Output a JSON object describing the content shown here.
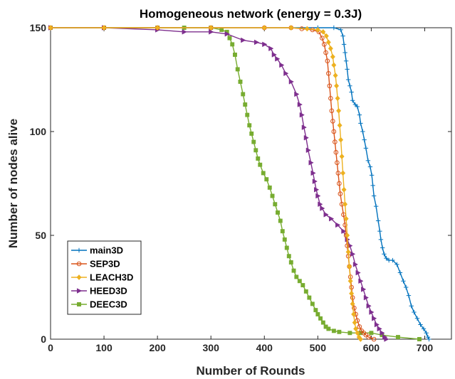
{
  "chart_data": {
    "type": "line",
    "title": "Homogeneous network (energy = 0.3J)",
    "xlabel": "Number of Rounds",
    "ylabel": "Number of nodes alive",
    "xlim": [
      0,
      750
    ],
    "ylim": [
      0,
      150
    ],
    "xticks": [
      "0",
      "100",
      "200",
      "300",
      "400",
      "500",
      "600",
      "700"
    ],
    "yticks": [
      "0",
      "50",
      "100",
      "150"
    ],
    "grid": false,
    "legend_position": "bottom-left",
    "series": [
      {
        "name": "main3D",
        "color": "#0072BD",
        "marker": "plus",
        "points": [
          [
            0,
            150
          ],
          [
            100,
            150
          ],
          [
            200,
            150
          ],
          [
            300,
            150
          ],
          [
            400,
            150
          ],
          [
            450,
            150
          ],
          [
            500,
            150
          ],
          [
            530,
            150
          ],
          [
            543,
            149
          ],
          [
            547,
            146
          ],
          [
            549,
            142
          ],
          [
            551,
            138
          ],
          [
            553,
            134
          ],
          [
            555,
            130
          ],
          [
            557,
            125
          ],
          [
            560,
            122
          ],
          [
            563,
            119
          ],
          [
            565,
            115
          ],
          [
            570,
            113
          ],
          [
            574,
            112
          ],
          [
            578,
            108
          ],
          [
            580,
            104
          ],
          [
            584,
            100
          ],
          [
            587,
            96
          ],
          [
            590,
            92
          ],
          [
            594,
            86
          ],
          [
            598,
            83
          ],
          [
            601,
            79
          ],
          [
            603,
            74
          ],
          [
            605,
            69
          ],
          [
            609,
            64
          ],
          [
            613,
            57
          ],
          [
            616,
            52
          ],
          [
            618,
            48
          ],
          [
            621,
            44
          ],
          [
            624,
            41
          ],
          [
            628,
            39
          ],
          [
            633,
            38
          ],
          [
            640,
            38
          ],
          [
            648,
            36
          ],
          [
            654,
            32
          ],
          [
            660,
            28
          ],
          [
            665,
            25
          ],
          [
            670,
            21
          ],
          [
            675,
            16
          ],
          [
            680,
            13
          ],
          [
            686,
            10
          ],
          [
            692,
            7
          ],
          [
            698,
            5
          ],
          [
            703,
            3
          ],
          [
            706,
            1
          ],
          [
            708,
            0
          ]
        ]
      },
      {
        "name": "SEP3D",
        "color": "#D95319",
        "marker": "circle",
        "points": [
          [
            0,
            150
          ],
          [
            100,
            150
          ],
          [
            200,
            150
          ],
          [
            300,
            150
          ],
          [
            400,
            150
          ],
          [
            450,
            150
          ],
          [
            470,
            149.5
          ],
          [
            490,
            149
          ],
          [
            502,
            148
          ],
          [
            508,
            145
          ],
          [
            512,
            142
          ],
          [
            515,
            138
          ],
          [
            518,
            134
          ],
          [
            520,
            128
          ],
          [
            522,
            122
          ],
          [
            524,
            116
          ],
          [
            526,
            110
          ],
          [
            528,
            105
          ],
          [
            530,
            100
          ],
          [
            532,
            95
          ],
          [
            534,
            90
          ],
          [
            536,
            85
          ],
          [
            538,
            80
          ],
          [
            540,
            75
          ],
          [
            542,
            70
          ],
          [
            545,
            65
          ],
          [
            548,
            60
          ],
          [
            551,
            55
          ],
          [
            553,
            50
          ],
          [
            555,
            45
          ],
          [
            557,
            40
          ],
          [
            559,
            35
          ],
          [
            561,
            30
          ],
          [
            563,
            25
          ],
          [
            565,
            20
          ],
          [
            568,
            15
          ],
          [
            571,
            12
          ],
          [
            574,
            9
          ],
          [
            578,
            6
          ],
          [
            582,
            4
          ],
          [
            586,
            3
          ],
          [
            590,
            2
          ],
          [
            595,
            1
          ],
          [
            605,
            0
          ]
        ]
      },
      {
        "name": "LEACH3D",
        "color": "#EDB120",
        "marker": "diamond",
        "points": [
          [
            0,
            150
          ],
          [
            100,
            150
          ],
          [
            200,
            150
          ],
          [
            300,
            150
          ],
          [
            400,
            150
          ],
          [
            450,
            150
          ],
          [
            480,
            149.5
          ],
          [
            500,
            149
          ],
          [
            510,
            148
          ],
          [
            516,
            146
          ],
          [
            520,
            143
          ],
          [
            524,
            140
          ],
          [
            528,
            136
          ],
          [
            530,
            132
          ],
          [
            533,
            127
          ],
          [
            535,
            122
          ],
          [
            537,
            116
          ],
          [
            539,
            110
          ],
          [
            541,
            103
          ],
          [
            543,
            96
          ],
          [
            545,
            88
          ],
          [
            547,
            80
          ],
          [
            549,
            72
          ],
          [
            551,
            65
          ],
          [
            553,
            58
          ],
          [
            555,
            50
          ],
          [
            557,
            42
          ],
          [
            559,
            35
          ],
          [
            561,
            28
          ],
          [
            563,
            22
          ],
          [
            565,
            17
          ],
          [
            567,
            12
          ],
          [
            569,
            8
          ],
          [
            571,
            5
          ],
          [
            574,
            3
          ],
          [
            577,
            1
          ],
          [
            580,
            0
          ]
        ]
      },
      {
        "name": "HEED3D",
        "color": "#7E2F8E",
        "marker": "triangle-right",
        "points": [
          [
            0,
            150
          ],
          [
            100,
            150
          ],
          [
            200,
            149
          ],
          [
            250,
            148
          ],
          [
            300,
            148
          ],
          [
            330,
            147
          ],
          [
            360,
            144
          ],
          [
            385,
            143
          ],
          [
            400,
            142
          ],
          [
            412,
            140
          ],
          [
            418,
            137
          ],
          [
            424,
            135
          ],
          [
            432,
            132
          ],
          [
            440,
            128
          ],
          [
            450,
            124
          ],
          [
            460,
            118
          ],
          [
            466,
            113
          ],
          [
            470,
            108
          ],
          [
            474,
            102
          ],
          [
            478,
            97
          ],
          [
            482,
            91
          ],
          [
            487,
            85
          ],
          [
            491,
            80
          ],
          [
            494,
            76
          ],
          [
            497,
            72
          ],
          [
            500,
            69
          ],
          [
            504,
            65
          ],
          [
            508,
            63
          ],
          [
            515,
            60
          ],
          [
            525,
            58
          ],
          [
            537,
            55
          ],
          [
            548,
            52
          ],
          [
            555,
            48
          ],
          [
            560,
            45
          ],
          [
            565,
            41
          ],
          [
            570,
            36
          ],
          [
            575,
            32
          ],
          [
            580,
            28
          ],
          [
            585,
            24
          ],
          [
            590,
            20
          ],
          [
            595,
            16
          ],
          [
            600,
            13
          ],
          [
            605,
            10
          ],
          [
            610,
            7
          ],
          [
            615,
            5
          ],
          [
            620,
            3
          ],
          [
            625,
            1
          ],
          [
            628,
            0
          ]
        ]
      },
      {
        "name": "DEEC3D",
        "color": "#77AC30",
        "marker": "square",
        "points": [
          [
            0,
            150
          ],
          [
            100,
            150
          ],
          [
            200,
            150
          ],
          [
            250,
            150
          ],
          [
            300,
            150
          ],
          [
            320,
            149
          ],
          [
            330,
            148
          ],
          [
            335,
            145
          ],
          [
            340,
            142
          ],
          [
            345,
            137
          ],
          [
            350,
            130
          ],
          [
            355,
            124
          ],
          [
            360,
            118
          ],
          [
            364,
            113
          ],
          [
            368,
            108
          ],
          [
            372,
            103
          ],
          [
            376,
            99
          ],
          [
            380,
            95
          ],
          [
            384,
            91
          ],
          [
            388,
            87
          ],
          [
            392,
            84
          ],
          [
            398,
            80
          ],
          [
            404,
            77
          ],
          [
            410,
            73
          ],
          [
            415,
            69
          ],
          [
            420,
            65
          ],
          [
            425,
            61
          ],
          [
            430,
            57
          ],
          [
            434,
            52
          ],
          [
            438,
            48
          ],
          [
            442,
            44
          ],
          [
            446,
            40
          ],
          [
            450,
            37
          ],
          [
            455,
            33
          ],
          [
            460,
            30
          ],
          [
            466,
            28
          ],
          [
            472,
            26
          ],
          [
            478,
            23
          ],
          [
            484,
            20
          ],
          [
            490,
            17
          ],
          [
            496,
            14
          ],
          [
            500,
            12
          ],
          [
            505,
            10
          ],
          [
            510,
            8
          ],
          [
            515,
            6
          ],
          [
            520,
            5
          ],
          [
            530,
            4
          ],
          [
            540,
            3.5
          ],
          [
            560,
            3
          ],
          [
            580,
            3
          ],
          [
            600,
            3
          ],
          [
            620,
            2
          ],
          [
            650,
            1
          ],
          [
            690,
            0
          ]
        ]
      }
    ]
  }
}
